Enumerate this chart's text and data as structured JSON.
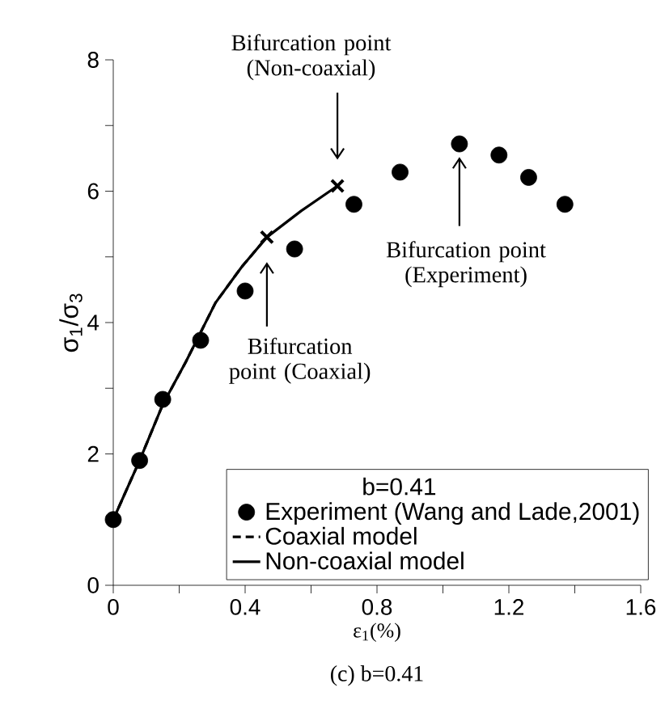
{
  "chart_data": {
    "type": "scatter",
    "title": "(c) b=0.41",
    "xlabel": "ε$_{1}$(%)",
    "ylabel": "σ$_{1}$/σ$_{3}$",
    "legend_title": "b=0.41",
    "legend": "bottom right",
    "grid": false,
    "xlim": [
      0,
      1.6
    ],
    "ylim": [
      0,
      8
    ],
    "xticks": [
      0,
      {
        "value": 0.2,
        "label": null
      },
      0.4,
      {
        "value": 0.6,
        "label": null
      },
      0.8,
      {
        "value": 1.0,
        "label": null
      },
      1.2,
      {
        "value": 1.4,
        "label": null
      },
      1.6
    ],
    "yticks": [
      0,
      {
        "value": 1,
        "label": null
      },
      2,
      {
        "value": 3,
        "label": null
      },
      4,
      {
        "value": 5,
        "label": null
      },
      6,
      {
        "value": 7,
        "label": null
      },
      8
    ],
    "series": [
      {
        "name": "Experiment (Wang and Lade,2001)",
        "marker": "circle",
        "color": "#000000",
        "x": [
          0,
          0.08,
          0.15,
          0.265,
          0.4,
          0.55,
          0.73,
          0.87,
          1.05,
          1.17,
          1.26,
          1.37
        ],
        "values": [
          1.0,
          1.9,
          2.83,
          3.73,
          4.48,
          5.12,
          5.8,
          6.29,
          6.72,
          6.55,
          6.21,
          5.8
        ]
      },
      {
        "name": "Coaxial model",
        "type": "line",
        "line_style": "dashed",
        "marker": "none",
        "color": "#000000",
        "x": [
          0,
          0.08,
          0.15,
          0.22,
          0.31,
          0.39,
          0.466
        ],
        "values": [
          1.0,
          1.9,
          2.75,
          3.4,
          4.3,
          4.85,
          5.3
        ]
      },
      {
        "name": "Non-coaxial model",
        "type": "line",
        "line_style": "solid",
        "marker": "none",
        "color": "#000000",
        "x": [
          0,
          0.08,
          0.15,
          0.22,
          0.31,
          0.39,
          0.466,
          0.57,
          0.68
        ],
        "values": [
          1.0,
          1.9,
          2.75,
          3.4,
          4.3,
          4.85,
          5.3,
          5.7,
          6.08
        ]
      },
      {
        "marker": "cross",
        "color": "#000000",
        "x": [
          0.466,
          0.68
        ],
        "values": [
          5.3,
          6.08
        ]
      }
    ],
    "annotations": [
      "Bifurcation point (Non-coaxial)",
      "Bifurcation point (Coaxial)",
      "Bifurcation point (Experiment)"
    ]
  }
}
